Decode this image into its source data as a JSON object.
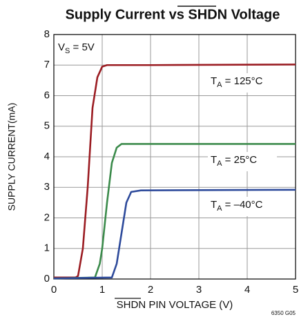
{
  "chart_data": {
    "type": "line",
    "title": "Supply Current vs SHDN Voltage",
    "xlabel": "SHDN PIN VOLTAGE (V)",
    "ylabel": "SUPPLY CURRENT(mA)",
    "annotation": [
      "V",
      "S",
      " = 5V"
    ],
    "figure_code": "6350 G05",
    "xlim": [
      0,
      5
    ],
    "xticks": [
      0,
      1,
      2,
      3,
      4,
      5
    ],
    "ylim": [
      0,
      8
    ],
    "yticks": [
      0,
      1,
      2,
      3,
      4,
      5,
      6,
      7,
      8
    ],
    "grid": true,
    "series": [
      {
        "name": [
          "T",
          "A",
          " = 125°C"
        ],
        "color": "#9b1c22",
        "x": [
          0,
          0.45,
          0.5,
          0.6,
          0.7,
          0.8,
          0.9,
          1.0,
          1.1,
          2.0,
          5.0
        ],
        "values": [
          0.05,
          0.05,
          0.1,
          1.0,
          3.0,
          5.6,
          6.6,
          6.95,
          7.0,
          7.0,
          7.02
        ]
      },
      {
        "name": [
          "T",
          "A",
          " = 25°C"
        ],
        "color": "#3a8a4a",
        "x": [
          0,
          0.85,
          0.95,
          1.0,
          1.1,
          1.2,
          1.3,
          1.4,
          5.0
        ],
        "values": [
          0.02,
          0.05,
          0.5,
          1.0,
          2.5,
          3.8,
          4.3,
          4.42,
          4.42
        ]
      },
      {
        "name": [
          "T",
          "A",
          " = –40°C"
        ],
        "color": "#2d4a9b",
        "x": [
          0,
          1.2,
          1.3,
          1.4,
          1.5,
          1.6,
          1.8,
          5.0
        ],
        "values": [
          0.02,
          0.05,
          0.5,
          1.5,
          2.5,
          2.85,
          2.9,
          2.92
        ]
      }
    ]
  }
}
